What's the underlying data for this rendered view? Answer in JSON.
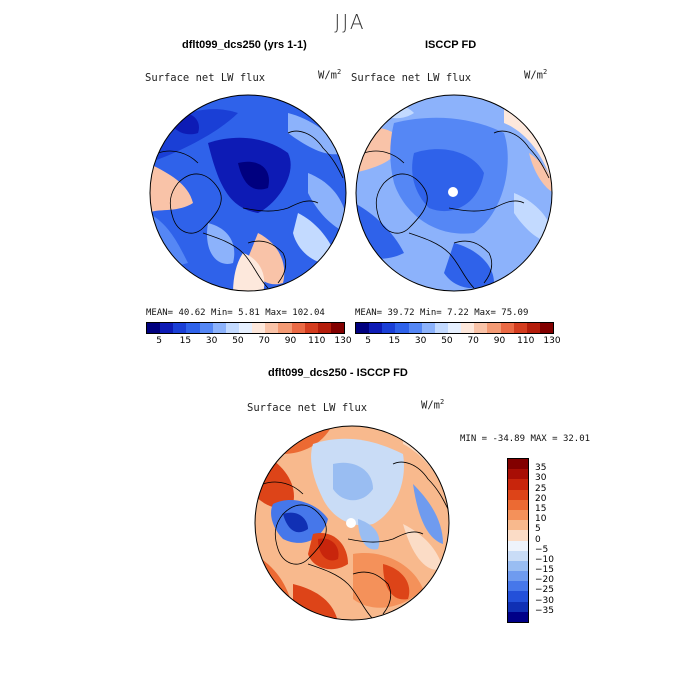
{
  "figure": {
    "season": "JJA",
    "panels": [
      {
        "id": "model",
        "title": "dflt099_dcs250 (yrs 1-1)",
        "variable": "Surface net LW flux",
        "units": "W/m",
        "units_exp": "2",
        "stats": "MEAN=  40.62  Min=   5.81  Max= 102.04",
        "colorbar_labels": [
          "5",
          "15",
          "30",
          "50",
          "70",
          "90",
          "110",
          "130"
        ],
        "colors": [
          "#00007f",
          "#0d1bb5",
          "#1a3fd6",
          "#2f62ea",
          "#5587f5",
          "#8cb2fb",
          "#c3daff",
          "#e6f0ff",
          "#fde8dc",
          "#f9c3a8",
          "#f39a74",
          "#ea6a45",
          "#d43d1f",
          "#b41d0b",
          "#820000"
        ],
        "map_mean": "blue"
      },
      {
        "id": "obs",
        "title": "ISCCP FD",
        "variable": "Surface net LW flux",
        "units": "W/m",
        "units_exp": "2",
        "stats": "MEAN=  39.72  Min=   7.22  Max=  75.09",
        "colorbar_labels": [
          "5",
          "15",
          "30",
          "50",
          "70",
          "90",
          "110",
          "130"
        ],
        "colors": [
          "#00007f",
          "#0d1bb5",
          "#1a3fd6",
          "#2f62ea",
          "#5587f5",
          "#8cb2fb",
          "#c3daff",
          "#e6f0ff",
          "#fde8dc",
          "#f9c3a8",
          "#f39a74",
          "#ea6a45",
          "#d43d1f",
          "#b41d0b",
          "#820000"
        ]
      },
      {
        "id": "diff",
        "title": "dflt099_dcs250 - ISCCP FD",
        "variable": "Surface net LW flux",
        "units": "W/m",
        "units_exp": "2",
        "stats": "MIN = -34.89  MAX =  32.01",
        "colorbar_labels": [
          "35",
          "30",
          "25",
          "20",
          "15",
          "10",
          "5",
          "0",
          "−5",
          "−10",
          "−15",
          "−20",
          "−25",
          "−30",
          "−35"
        ],
        "colors": [
          "#820000",
          "#a80e05",
          "#c8250c",
          "#dd4418",
          "#ec6a33",
          "#f4915a",
          "#f8b98d",
          "#fbdcc6",
          "#eef3fb",
          "#c9dcf6",
          "#99bdf2",
          "#6f9bef",
          "#4677ea",
          "#2350d9",
          "#1030b4",
          "#000088"
        ]
      }
    ]
  }
}
